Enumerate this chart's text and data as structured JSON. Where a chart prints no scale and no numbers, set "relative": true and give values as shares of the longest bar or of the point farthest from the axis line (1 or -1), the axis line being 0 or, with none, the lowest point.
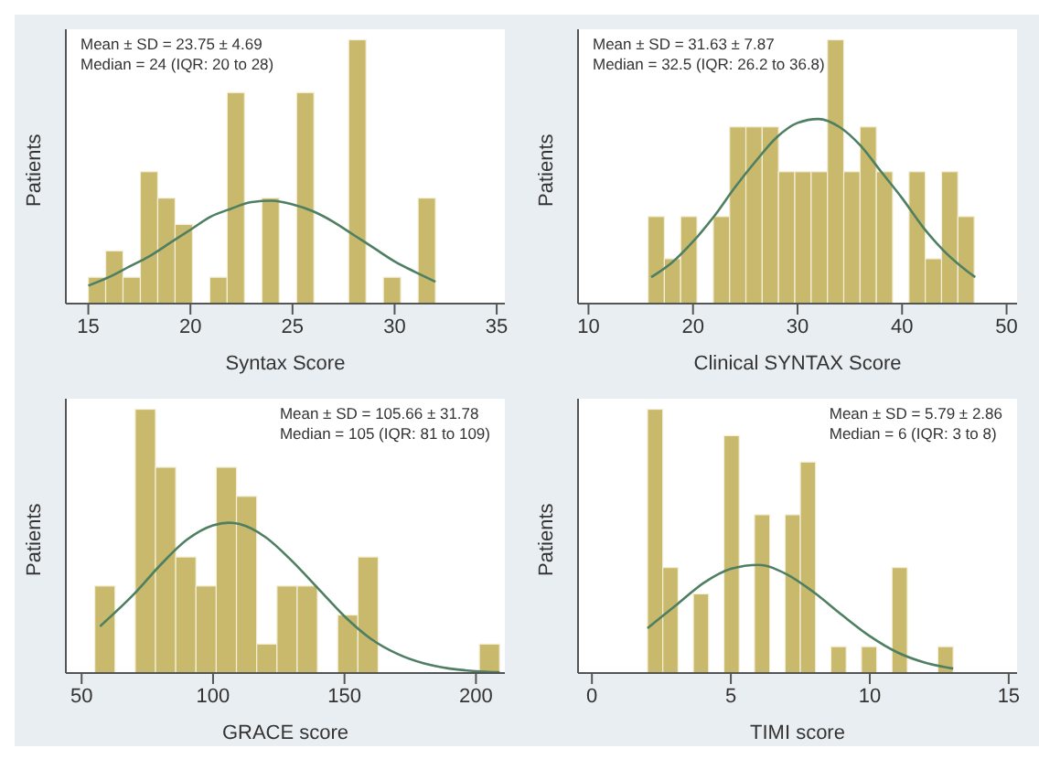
{
  "chart_data": [
    {
      "type": "histogram",
      "xlabel": "Syntax Score",
      "ylabel": "Patients",
      "relative": true,
      "grid": false,
      "xlim": [
        13.9,
        35.4
      ],
      "xticks": [
        15,
        20,
        25,
        30,
        35
      ],
      "annotations": [
        "Mean ± SD = 23.75 ± 4.69",
        "Median = 24 (IQR: 20 to 28)"
      ],
      "bins": [
        15,
        15.85,
        16.7,
        17.55,
        18.4,
        19.25,
        20.1,
        20.95,
        21.8,
        22.65,
        23.5,
        24.35,
        25.2,
        26.05,
        26.9,
        27.75,
        28.6,
        29.45,
        30.3,
        31.15,
        32
      ],
      "series": [
        {
          "type": "histogram",
          "color": "#c9b96c",
          "values": [
            0.1,
            0.2,
            0.1,
            0.5,
            0.4,
            0.3,
            0,
            0.1,
            0.8,
            0,
            0.4,
            0,
            0.8,
            0,
            0,
            1,
            0,
            0.1,
            0,
            0.4
          ]
        },
        {
          "type": "line",
          "color": "#4f7f62",
          "x": [
            15,
            16,
            17,
            18,
            19,
            20,
            21,
            22,
            23,
            24,
            25,
            26,
            27,
            28,
            29,
            30,
            31,
            32
          ],
          "values": [
            0.068,
            0.1,
            0.14,
            0.18,
            0.23,
            0.28,
            0.33,
            0.36,
            0.385,
            0.39,
            0.376,
            0.35,
            0.31,
            0.26,
            0.21,
            0.16,
            0.12,
            0.083
          ]
        }
      ]
    },
    {
      "type": "histogram",
      "xlabel": "Clinical SYNTAX Score",
      "ylabel": "Patients",
      "relative": true,
      "grid": false,
      "xlim": [
        9,
        51
      ],
      "xticks": [
        10,
        20,
        30,
        40,
        50
      ],
      "annotations": [
        "Mean ± SD = 31.63 ± 7.87",
        "Median = 32.5 (IQR: 26.2 to 36.8)"
      ],
      "bins": [
        15.7,
        17.26,
        18.82,
        20.38,
        21.94,
        23.5,
        25.06,
        26.62,
        28.18,
        29.74,
        31.3,
        32.86,
        34.42,
        35.98,
        37.54,
        39.1,
        40.66,
        42.22,
        43.78,
        45.34,
        46.9
      ],
      "series": [
        {
          "type": "histogram",
          "color": "#c9b96c",
          "values": [
            0.33,
            0.17,
            0.33,
            0,
            0.33,
            0.67,
            0.67,
            0.67,
            0.5,
            0.5,
            0.5,
            1,
            0.5,
            0.67,
            0.5,
            0,
            0.5,
            0.17,
            0.5,
            0.33
          ]
        },
        {
          "type": "line",
          "color": "#4f7f62",
          "x": [
            16,
            18,
            20,
            22,
            24,
            26,
            28,
            30,
            32,
            34,
            36,
            38,
            40,
            42,
            44,
            46,
            47
          ],
          "values": [
            0.1,
            0.156,
            0.235,
            0.33,
            0.44,
            0.54,
            0.63,
            0.685,
            0.7,
            0.67,
            0.6,
            0.5,
            0.4,
            0.29,
            0.2,
            0.13,
            0.1
          ]
        }
      ]
    },
    {
      "type": "histogram",
      "xlabel": "GRACE score",
      "ylabel": "Patients",
      "relative": true,
      "grid": false,
      "xlim": [
        44,
        211
      ],
      "xticks": [
        50,
        100,
        150,
        200
      ],
      "annotations": [
        "Mean ± SD = 105.66 ± 31.78",
        "Median = 105 (IQR: 81 to 109)"
      ],
      "bins": [
        55,
        62.7,
        70.4,
        78.1,
        85.8,
        93.5,
        101.2,
        108.9,
        116.6,
        124.3,
        132,
        139.7,
        147.4,
        155.1,
        162.8,
        170.5,
        178.2,
        185.9,
        193.6,
        201.3,
        209
      ],
      "series": [
        {
          "type": "histogram",
          "color": "#c9b96c",
          "values": [
            0.33,
            0,
            1,
            0.78,
            0.44,
            0.33,
            0.78,
            0.67,
            0.11,
            0.33,
            0.33,
            0,
            0.22,
            0.44,
            0,
            0,
            0,
            0,
            0,
            0.11
          ]
        },
        {
          "type": "line",
          "color": "#4f7f62",
          "x": [
            57,
            70,
            80,
            90,
            100,
            106,
            110,
            120,
            130,
            140,
            150,
            160,
            170,
            180,
            190,
            200,
            209
          ],
          "values": [
            0.177,
            0.3,
            0.41,
            0.505,
            0.56,
            0.57,
            0.565,
            0.515,
            0.425,
            0.32,
            0.215,
            0.13,
            0.073,
            0.037,
            0.017,
            0.007,
            0.003
          ]
        }
      ]
    },
    {
      "type": "histogram",
      "xlabel": "TIMI score",
      "ylabel": "Patients",
      "relative": true,
      "grid": false,
      "xlim": [
        -0.5,
        15.3
      ],
      "xticks": [
        0,
        5,
        10,
        15
      ],
      "annotations": [
        "Mean ± SD = 5.79 ± 2.86",
        "Median = 6 (IQR: 3 to 8)"
      ],
      "bins": [
        2,
        2.55,
        3.1,
        3.65,
        4.2,
        4.75,
        5.3,
        5.85,
        6.4,
        6.95,
        7.5,
        8.05,
        8.6,
        9.15,
        9.7,
        10.25,
        10.8,
        11.35,
        11.9,
        12.45,
        13
      ],
      "series": [
        {
          "type": "histogram",
          "color": "#c9b96c",
          "values": [
            1,
            0.4,
            0,
            0.3,
            0,
            0.9,
            0,
            0.6,
            0,
            0.6,
            0.8,
            0,
            0.1,
            0,
            0.1,
            0,
            0.4,
            0,
            0,
            0.1
          ]
        },
        {
          "type": "line",
          "color": "#4f7f62",
          "x": [
            2,
            3,
            4,
            5,
            6,
            7,
            8,
            9,
            10,
            11,
            12,
            13
          ],
          "values": [
            0.17,
            0.255,
            0.34,
            0.395,
            0.41,
            0.375,
            0.305,
            0.22,
            0.14,
            0.078,
            0.039,
            0.017
          ]
        }
      ]
    }
  ]
}
